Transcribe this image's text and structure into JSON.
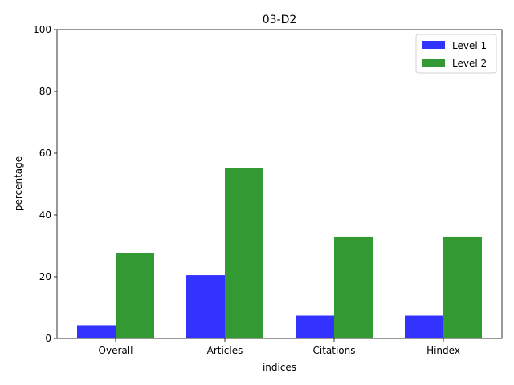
{
  "chart_data": {
    "type": "bar",
    "title": "03-D2",
    "xlabel": "indices",
    "ylabel": "percentage",
    "categories": [
      "Overall",
      "Articles",
      "Citations",
      "Hindex"
    ],
    "ylim": [
      0,
      100
    ],
    "yticks": [
      0,
      20,
      40,
      60,
      80,
      100
    ],
    "series": [
      {
        "name": "Level 1",
        "color": "#3333ff",
        "values": [
          4.3,
          20.5,
          7.4,
          7.4
        ]
      },
      {
        "name": "Level 2",
        "color": "#339933",
        "values": [
          27.7,
          55.3,
          33.0,
          33.0
        ]
      }
    ],
    "legend": "top-right",
    "grid": false
  }
}
